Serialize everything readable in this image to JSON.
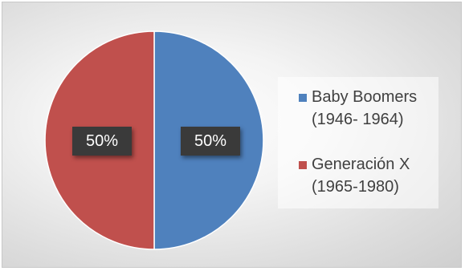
{
  "chart_data": {
    "type": "pie",
    "categories": [
      "Baby Boomers (1946- 1964)",
      "Generación X (1965-1980)"
    ],
    "values": [
      50,
      50
    ],
    "data_labels": [
      "50%",
      "50%"
    ],
    "colors": [
      "#4f81bd",
      "#c0504d"
    ],
    "legend": {
      "placement": "right",
      "entries": [
        {
          "line1": "Baby Boomers",
          "line2": "(1946- 1964)",
          "color": "#4f81bd"
        },
        {
          "line1": "Generación X",
          "line2": "(1965-1980)",
          "color": "#c0504d"
        }
      ]
    }
  }
}
